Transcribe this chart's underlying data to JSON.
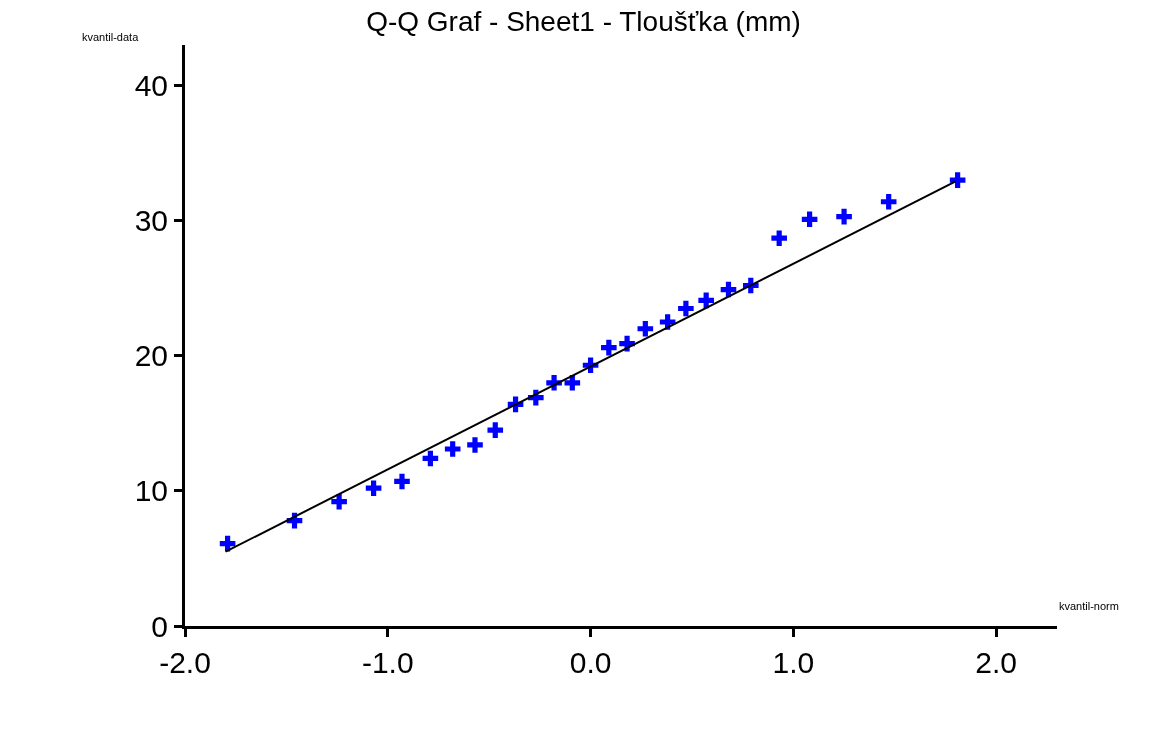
{
  "chart_data": {
    "type": "scatter",
    "title": "Q-Q Graf - Sheet1 - Tloušťka (mm)",
    "xlabel": "kvantil-norm",
    "ylabel": "kvantil-data",
    "xlim": [
      -2.0,
      2.3
    ],
    "ylim": [
      0,
      43
    ],
    "xticks": [
      {
        "value": -2,
        "label": "-2.0"
      },
      {
        "value": -1,
        "label": "-1.0"
      },
      {
        "value": 0,
        "label": "0.0"
      },
      {
        "value": 1,
        "label": "1.0"
      },
      {
        "value": 2,
        "label": "2.0"
      }
    ],
    "yticks": [
      0,
      10,
      20,
      30,
      40
    ],
    "grid": false,
    "legend": false,
    "series": [
      {
        "marker": "cross",
        "color": "#0000ff",
        "x": [
          -1.79,
          -1.46,
          -1.24,
          -1.07,
          -0.93,
          -0.79,
          -0.68,
          -0.57,
          -0.47,
          -0.37,
          -0.27,
          -0.18,
          -0.09,
          0.0,
          0.09,
          0.18,
          0.27,
          0.38,
          0.47,
          0.57,
          0.68,
          0.79,
          0.93,
          1.08,
          1.25,
          1.47,
          1.81
        ],
        "values": [
          6.1,
          7.8,
          9.2,
          10.2,
          10.7,
          12.4,
          13.1,
          13.4,
          14.5,
          16.4,
          16.9,
          18.0,
          18.0,
          19.3,
          20.6,
          20.9,
          22.0,
          22.5,
          23.5,
          24.1,
          24.9,
          25.2,
          28.7,
          30.1,
          30.3,
          31.4,
          33.0
        ]
      },
      {
        "type": "line",
        "color": "#000000",
        "line_style": "solid",
        "x": [
          -1.8,
          1.8
        ],
        "values": [
          5.5,
          32.9
        ]
      }
    ]
  }
}
